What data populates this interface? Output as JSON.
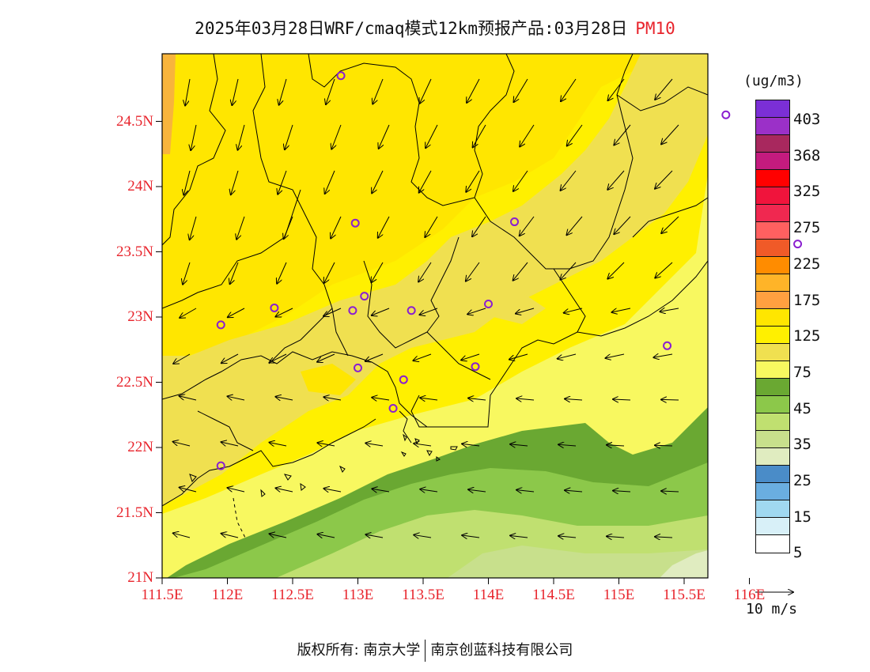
{
  "title": {
    "main": "2025年03月28日WRF/cmaq模式12km预报产品:03月28日",
    "variable": "PM10"
  },
  "y_labels": [
    "24.5N",
    "24N",
    "23.5N",
    "23N",
    "22.5N",
    "22N",
    "21.5N",
    "21N"
  ],
  "x_labels": [
    "111.5E",
    "112E",
    "112.5E",
    "113E",
    "113.5E",
    "114E",
    "114.5E",
    "115E",
    "115.5E",
    "116E"
  ],
  "legend": {
    "unit": "(ug/m3)",
    "labels": [
      "403",
      "368",
      "325",
      "275",
      "225",
      "175",
      "125",
      "75",
      "45",
      "35",
      "25",
      "15",
      "5"
    ],
    "colors": [
      "#7b2fd6",
      "#9b30c8",
      "#a8285e",
      "#c41b7e",
      "#ff0000",
      "#f0143c",
      "#f02850",
      "#ff6060",
      "#f05a28",
      "#ff8c00",
      "#ffb428",
      "#ffa040",
      "#ffe600",
      "#fff000",
      "#f0e050",
      "#f8f860",
      "#6aa832",
      "#8cc84a",
      "#c0e070",
      "#c8e08c",
      "#e0ecc0",
      "#4a8cc8",
      "#6aaee0",
      "#a0d8f0",
      "#d8f0f8",
      "#ffffff"
    ]
  },
  "wind_reference": "10  m/s",
  "stations": [
    [
      112.87,
      24.85
    ],
    [
      115.82,
      24.55
    ],
    [
      112.98,
      23.72
    ],
    [
      114.2,
      23.73
    ],
    [
      116.37,
      23.56
    ],
    [
      112.36,
      23.07
    ],
    [
      113.05,
      23.16
    ],
    [
      112.96,
      23.05
    ],
    [
      113.41,
      23.05
    ],
    [
      114.0,
      23.1
    ],
    [
      111.95,
      22.94
    ],
    [
      113.0,
      22.61
    ],
    [
      113.35,
      22.52
    ],
    [
      113.9,
      22.62
    ],
    [
      115.37,
      22.78
    ],
    [
      113.27,
      22.3
    ],
    [
      111.95,
      21.86
    ]
  ],
  "footer": {
    "left": "版权所有: 南京大学",
    "right": "南京创蓝科技有限公司"
  }
}
